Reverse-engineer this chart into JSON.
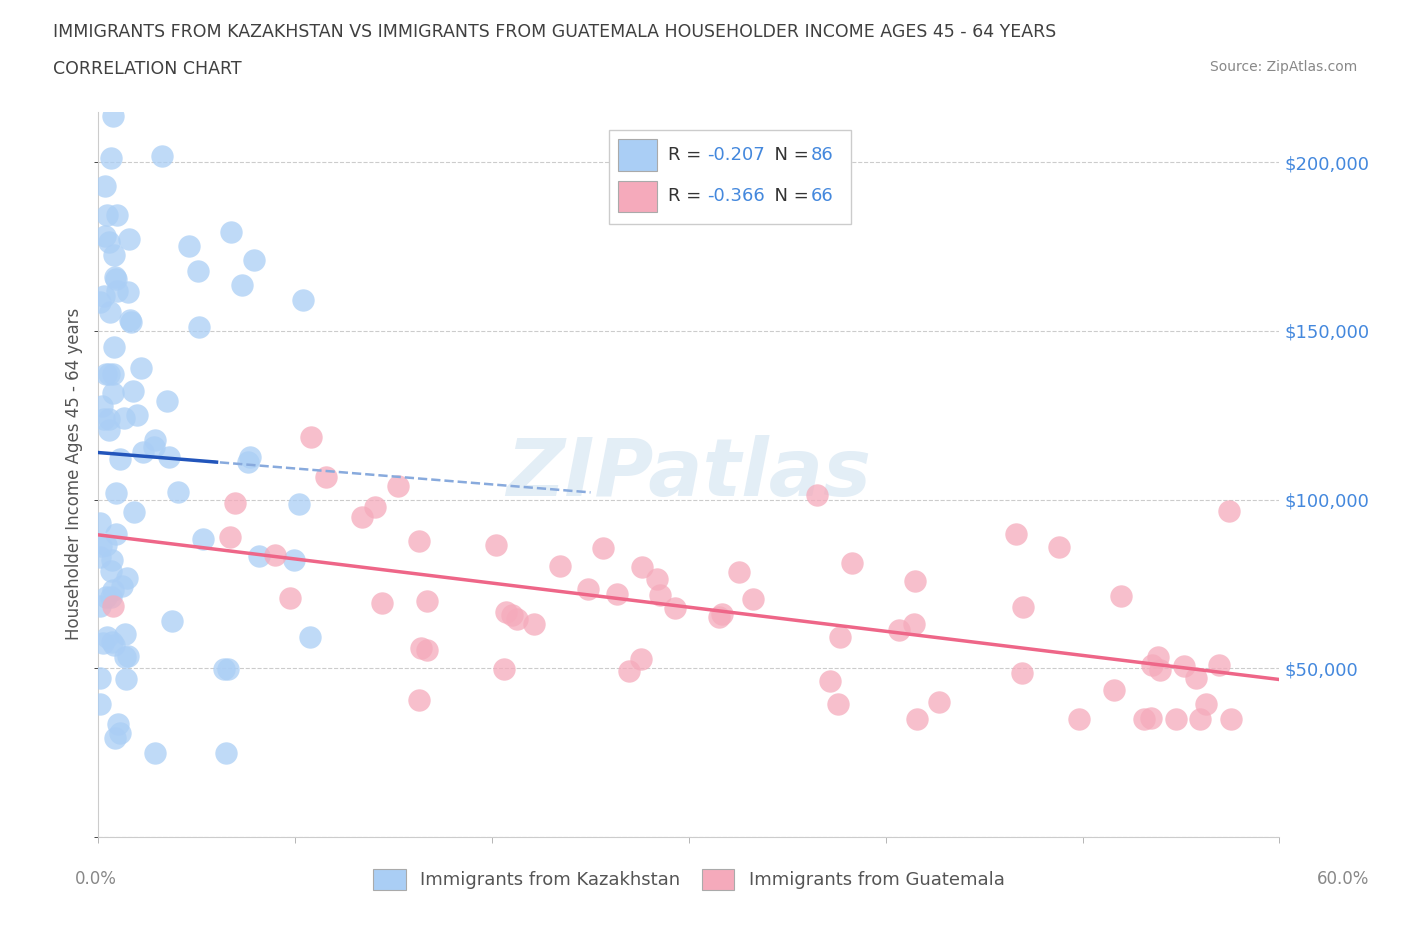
{
  "title": "IMMIGRANTS FROM KAZAKHSTAN VS IMMIGRANTS FROM GUATEMALA HOUSEHOLDER INCOME AGES 45 - 64 YEARS",
  "subtitle": "CORRELATION CHART",
  "source": "Source: ZipAtlas.com",
  "ylabel": "Householder Income Ages 45 - 64 years",
  "xlim": [
    0,
    0.6
  ],
  "ylim": [
    0,
    215000
  ],
  "yticks": [
    0,
    50000,
    100000,
    150000,
    200000
  ],
  "ytick_labels_right": [
    "",
    "$50,000",
    "$100,000",
    "$150,000",
    "$200,000"
  ],
  "xtick_left_label": "0.0%",
  "xtick_right_label": "60.0%",
  "legend_bottom_label1": "Immigrants from Kazakhstan",
  "legend_bottom_label2": "Immigrants from Guatemala",
  "kaz_color": "#aacef5",
  "kaz_edge_color": "#7aaed5",
  "guat_color": "#f5aabb",
  "guat_edge_color": "#e07090",
  "kaz_line_color": "#2255bb",
  "kaz_dash_color": "#88aadd",
  "guat_line_color": "#ee6688",
  "kaz_R": -0.207,
  "kaz_N": 86,
  "guat_R": -0.366,
  "guat_N": 66,
  "watermark": "ZIPatlas",
  "background_color": "#ffffff",
  "grid_color": "#cccccc",
  "title_color": "#404040",
  "axis_label_color": "#555555",
  "tick_label_color_y": "#4488dd",
  "tick_label_color_x": "#888888",
  "legend_text_color": "#333333",
  "legend_RN_color": "#4488dd",
  "source_color": "#888888"
}
